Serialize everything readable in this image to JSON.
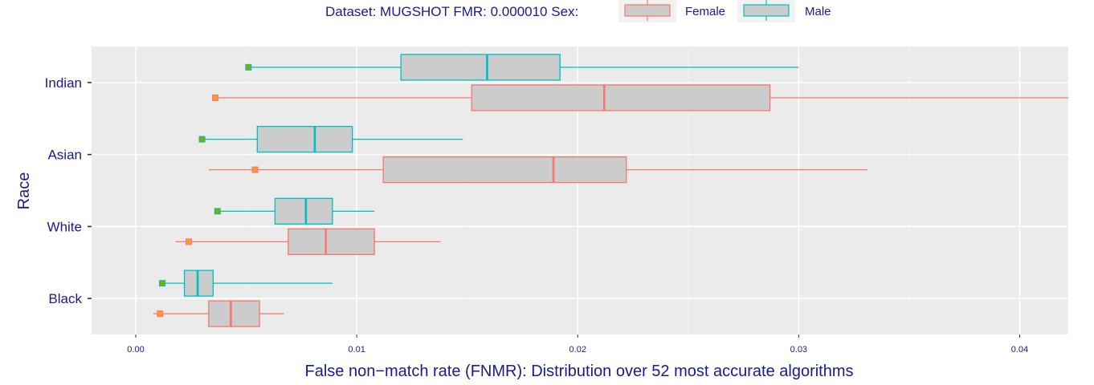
{
  "chart_data": {
    "type": "boxplot",
    "orientation": "horizontal",
    "title": "",
    "legend": {
      "title": "Dataset: MUGSHOT FMR: 0.000010  Sex:",
      "position": "top",
      "entries": [
        {
          "name": "Female",
          "color": "#F8766D"
        },
        {
          "name": "Male",
          "color": "#00BFC4"
        }
      ]
    },
    "xlabel": "False non−match rate (FNMR): Distribution over 52 most accurate algorithms",
    "ylabel": "Race",
    "xlim": [
      -0.002,
      0.0422
    ],
    "x_ticks": [
      0.0,
      0.01,
      0.02,
      0.03,
      0.04
    ],
    "x_tick_labels": [
      "0.00",
      "0.01",
      "0.02",
      "0.03",
      "0.04"
    ],
    "categories": [
      "Indian",
      "Asian",
      "White",
      "Black"
    ],
    "grid": true,
    "panel_background": "#EBEBEB",
    "box_fill": "#CCCCCC",
    "series": [
      {
        "name": "Male",
        "color": "#00BFC4",
        "marker_fill": "#7CAE00",
        "boxes": [
          {
            "category": "Indian",
            "whisker_low": 0.0051,
            "q1": 0.012,
            "median": 0.0159,
            "q3": 0.0192,
            "whisker_high": 0.03,
            "marker": 0.0051
          },
          {
            "category": "Asian",
            "whisker_low": 0.003,
            "q1": 0.0055,
            "median": 0.0081,
            "q3": 0.0098,
            "whisker_high": 0.0148,
            "marker": 0.003
          },
          {
            "category": "White",
            "whisker_low": 0.0037,
            "q1": 0.0063,
            "median": 0.0077,
            "q3": 0.0089,
            "whisker_high": 0.0108,
            "marker": 0.0037
          },
          {
            "category": "Black",
            "whisker_low": 0.0012,
            "q1": 0.0022,
            "median": 0.0028,
            "q3": 0.0035,
            "whisker_high": 0.0089,
            "marker": 0.0012
          }
        ]
      },
      {
        "name": "Female",
        "color": "#F8766D",
        "marker_fill": "#FF9933",
        "boxes": [
          {
            "category": "Indian",
            "whisker_low": 0.0036,
            "q1": 0.0152,
            "median": 0.0212,
            "q3": 0.0287,
            "whisker_high": 0.0422,
            "marker": 0.0036
          },
          {
            "category": "Asian",
            "whisker_low": 0.0033,
            "q1": 0.0112,
            "median": 0.0189,
            "q3": 0.0222,
            "whisker_high": 0.0331,
            "marker": 0.0054
          },
          {
            "category": "White",
            "whisker_low": 0.0018,
            "q1": 0.0069,
            "median": 0.0086,
            "q3": 0.0108,
            "whisker_high": 0.0138,
            "marker": 0.0024
          },
          {
            "category": "Black",
            "whisker_low": 0.0008,
            "q1": 0.0033,
            "median": 0.0043,
            "q3": 0.0056,
            "whisker_high": 0.0067,
            "marker": 0.0011
          }
        ]
      }
    ]
  }
}
